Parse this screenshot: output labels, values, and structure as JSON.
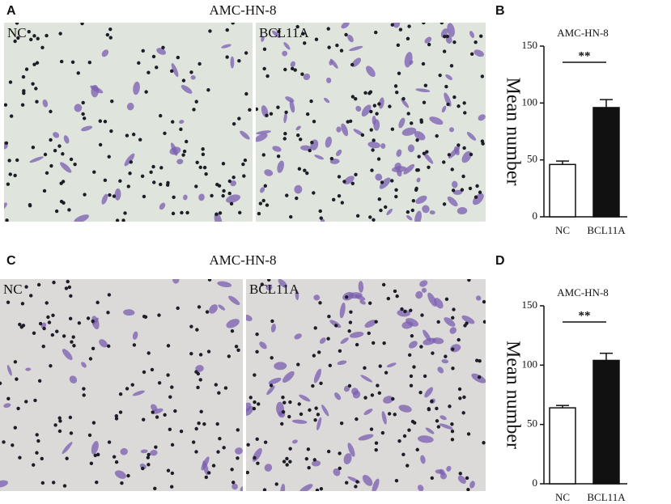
{
  "panels": [
    {
      "letter": "A",
      "title": "AMC-HN-8",
      "images": [
        "NC",
        "BCL11A"
      ]
    },
    {
      "letter": "C",
      "title": "AMC-HN-8",
      "images": [
        "NC",
        "BCL11A"
      ]
    }
  ],
  "chart_data": [
    {
      "type": "bar",
      "panel_label": "B",
      "title": "AMC-HN-8",
      "y_label": "Mean number",
      "categories": [
        "NC",
        "BCL11A"
      ],
      "values": [
        46,
        96
      ],
      "errors": [
        3,
        7
      ],
      "colors": [
        "#ffffff",
        "#111111"
      ],
      "annotation": "**",
      "ylim": [
        0,
        150
      ],
      "yticks": [
        0,
        50,
        100,
        150
      ]
    },
    {
      "type": "bar",
      "panel_label": "D",
      "title": "AMC-HN-8",
      "y_label": "Mean number",
      "categories": [
        "NC",
        "BCL11A"
      ],
      "values": [
        64,
        104
      ],
      "errors": [
        2,
        6
      ],
      "colors": [
        "#ffffff",
        "#111111"
      ],
      "annotation": "**",
      "ylim": [
        0,
        150
      ],
      "yticks": [
        0,
        50,
        100,
        150
      ]
    }
  ]
}
